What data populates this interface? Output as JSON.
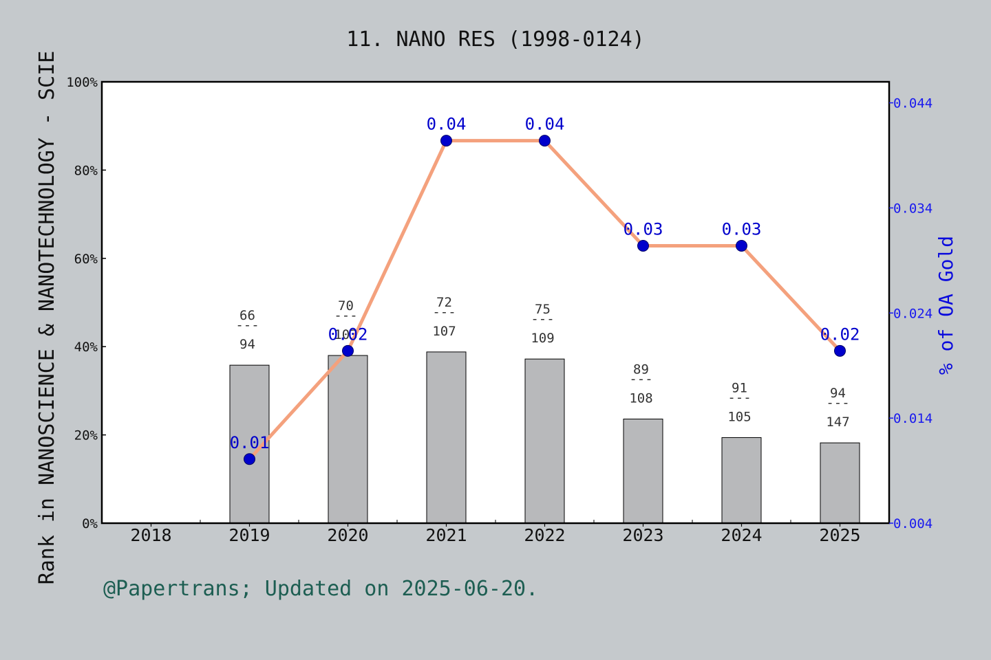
{
  "title": "11. NANO RES (1998-0124)",
  "footer": "@Papertrans; Updated on 2025-06-20.",
  "chart_data": {
    "type": "bar",
    "title": "11. NANO RES (1998-0124)",
    "ylabel": "Rank in NANOSCIENCE & NANOTECHNOLOGY - SCIE",
    "ylabel_right": "% of OA Gold",
    "categories": [
      "2018",
      "2019",
      "2020",
      "2021",
      "2022",
      "2023",
      "2024",
      "2025"
    ],
    "ylim": [
      0,
      100
    ],
    "y_ticks": [
      "0%",
      "20%",
      "40%",
      "60%",
      "80%",
      "100%"
    ],
    "y2lim": [
      0.004,
      0.046
    ],
    "y2_ticks": [
      "0.004",
      "0.014",
      "0.024",
      "0.034",
      "0.044"
    ],
    "bars": {
      "values": [
        null,
        35.8,
        38.0,
        38.8,
        37.2,
        23.6,
        19.4,
        18.2
      ],
      "labels": [
        null,
        {
          "rank": "66",
          "sep": "---",
          "total": "94"
        },
        {
          "rank": "70",
          "sep": "---",
          "total": "103"
        },
        {
          "rank": "72",
          "sep": "---",
          "total": "107"
        },
        {
          "rank": "75",
          "sep": "---",
          "total": "109"
        },
        {
          "rank": "89",
          "sep": "---",
          "total": "108"
        },
        {
          "rank": "91",
          "sep": "---",
          "total": "105"
        },
        {
          "rank": "94",
          "sep": "---",
          "total": "147"
        }
      ],
      "color": "#b8b9bb"
    },
    "line": {
      "values": [
        null,
        0.0101,
        0.0204,
        0.0404,
        0.0404,
        0.0304,
        0.0304,
        0.0204
      ],
      "labels": [
        null,
        "0.01",
        "0.02",
        "0.04",
        "0.04",
        "0.03",
        "0.03",
        "0.02"
      ],
      "color": "#f4a17d",
      "marker_color": "#0000cc"
    },
    "grid": false
  }
}
